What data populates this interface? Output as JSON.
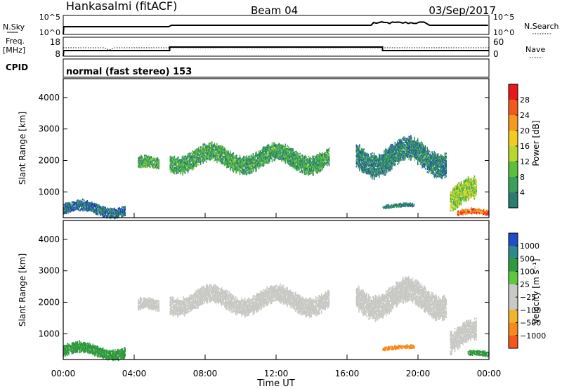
{
  "header": {
    "station": "Hankasalmi (fitACF)",
    "beam": "Beam 04",
    "date": "03/Sep/2017"
  },
  "summary_panel": {
    "nsky_label": "N.Sky",
    "nsky_ticks": [
      "10^5",
      "10^0"
    ],
    "nsearch_label": "N.Search",
    "nsearch_ticks": [
      "10^5",
      "10^0"
    ],
    "freq_label_line1": "Freq.",
    "freq_label_line2": "[MHz]",
    "freq_ticks": [
      "18",
      "8"
    ],
    "nave_label": "Nave",
    "nave_ticks": [
      "60",
      "0"
    ],
    "cpid_label": "CPID",
    "cpid_text": "normal (fast stereo) 153"
  },
  "colorbars": {
    "power": {
      "label": "Power [dB]",
      "ticks": [
        "28",
        "24",
        "20",
        "16",
        "12",
        "8",
        "4"
      ],
      "colors": [
        "#e8191b",
        "#f25a1c",
        "#f59a1e",
        "#f0cd20",
        "#b8d62d",
        "#5bbf3a",
        "#3a9f5c",
        "#2b7d6f",
        "#2358a4",
        "#1a2fd4"
      ]
    },
    "velocity": {
      "label": "Velocity [m s⁻¹]",
      "ticks": [
        "1000",
        "500",
        "100",
        "25",
        "−25",
        "−100",
        "−500",
        "−1000"
      ],
      "colors": [
        "#1f4cc8",
        "#2c8a8a",
        "#2f9a3c",
        "#60c840",
        "#c8c8c4",
        "#c8c8c4",
        "#f0b52a",
        "#f58a1d",
        "#f4561c",
        "#e8191b"
      ]
    }
  },
  "chart_data": [
    {
      "type": "heatmap",
      "title": "",
      "ylabel": "Slant Range [km]",
      "ylim": [
        180,
        4600
      ],
      "yticks": [
        "4000",
        "3000",
        "2000",
        "1000"
      ],
      "x": [
        "00:00",
        "04:00",
        "08:00",
        "12:00",
        "16:00",
        "20:00",
        "00:00"
      ],
      "quantity": "Power [dB]",
      "regions": [
        {
          "t0": 4.2,
          "t1": 5.4,
          "r0": 1550,
          "r1": 2100,
          "value": 14
        },
        {
          "t0": 6.0,
          "t1": 15.0,
          "r0": 1600,
          "r1": 2500,
          "value": 13
        },
        {
          "t0": 16.5,
          "t1": 21.6,
          "r0": 1500,
          "r1": 2700,
          "value": 10
        },
        {
          "t0": 21.8,
          "t1": 23.3,
          "r0": 300,
          "r1": 1400,
          "value": 18
        },
        {
          "t0": 22.2,
          "t1": 24.0,
          "r0": 180,
          "r1": 450,
          "value": 28
        },
        {
          "t0": 18.0,
          "t1": 19.8,
          "r0": 450,
          "r1": 620,
          "value": 10
        },
        {
          "t0": 0.0,
          "t1": 3.5,
          "r0": 180,
          "r1": 700,
          "value": 8
        }
      ]
    },
    {
      "type": "heatmap",
      "title": "",
      "ylabel": "Slant Range [km]",
      "ylim": [
        180,
        4600
      ],
      "yticks": [
        "4000",
        "3000",
        "2000",
        "1000"
      ],
      "x": [
        "00:00",
        "04:00",
        "08:00",
        "12:00",
        "16:00",
        "20:00",
        "00:00"
      ],
      "xlabel": "Time UT",
      "quantity": "Velocity [m s-1]",
      "regions": [
        {
          "t0": 4.2,
          "t1": 5.4,
          "r0": 1550,
          "r1": 2100,
          "value": 0
        },
        {
          "t0": 6.0,
          "t1": 15.0,
          "r0": 1600,
          "r1": 2500,
          "value": 0
        },
        {
          "t0": 16.5,
          "t1": 21.6,
          "r0": 1500,
          "r1": 2700,
          "value": 0
        },
        {
          "t0": 21.8,
          "t1": 23.3,
          "r0": 300,
          "r1": 1400,
          "value": 0
        },
        {
          "t0": 22.8,
          "t1": 24.0,
          "r0": 200,
          "r1": 450,
          "value": 150
        },
        {
          "t0": 0.0,
          "t1": 3.5,
          "r0": 180,
          "r1": 700,
          "value": 120
        },
        {
          "t0": 18.0,
          "t1": 19.8,
          "r0": 450,
          "r1": 620,
          "value": -150
        }
      ]
    }
  ]
}
